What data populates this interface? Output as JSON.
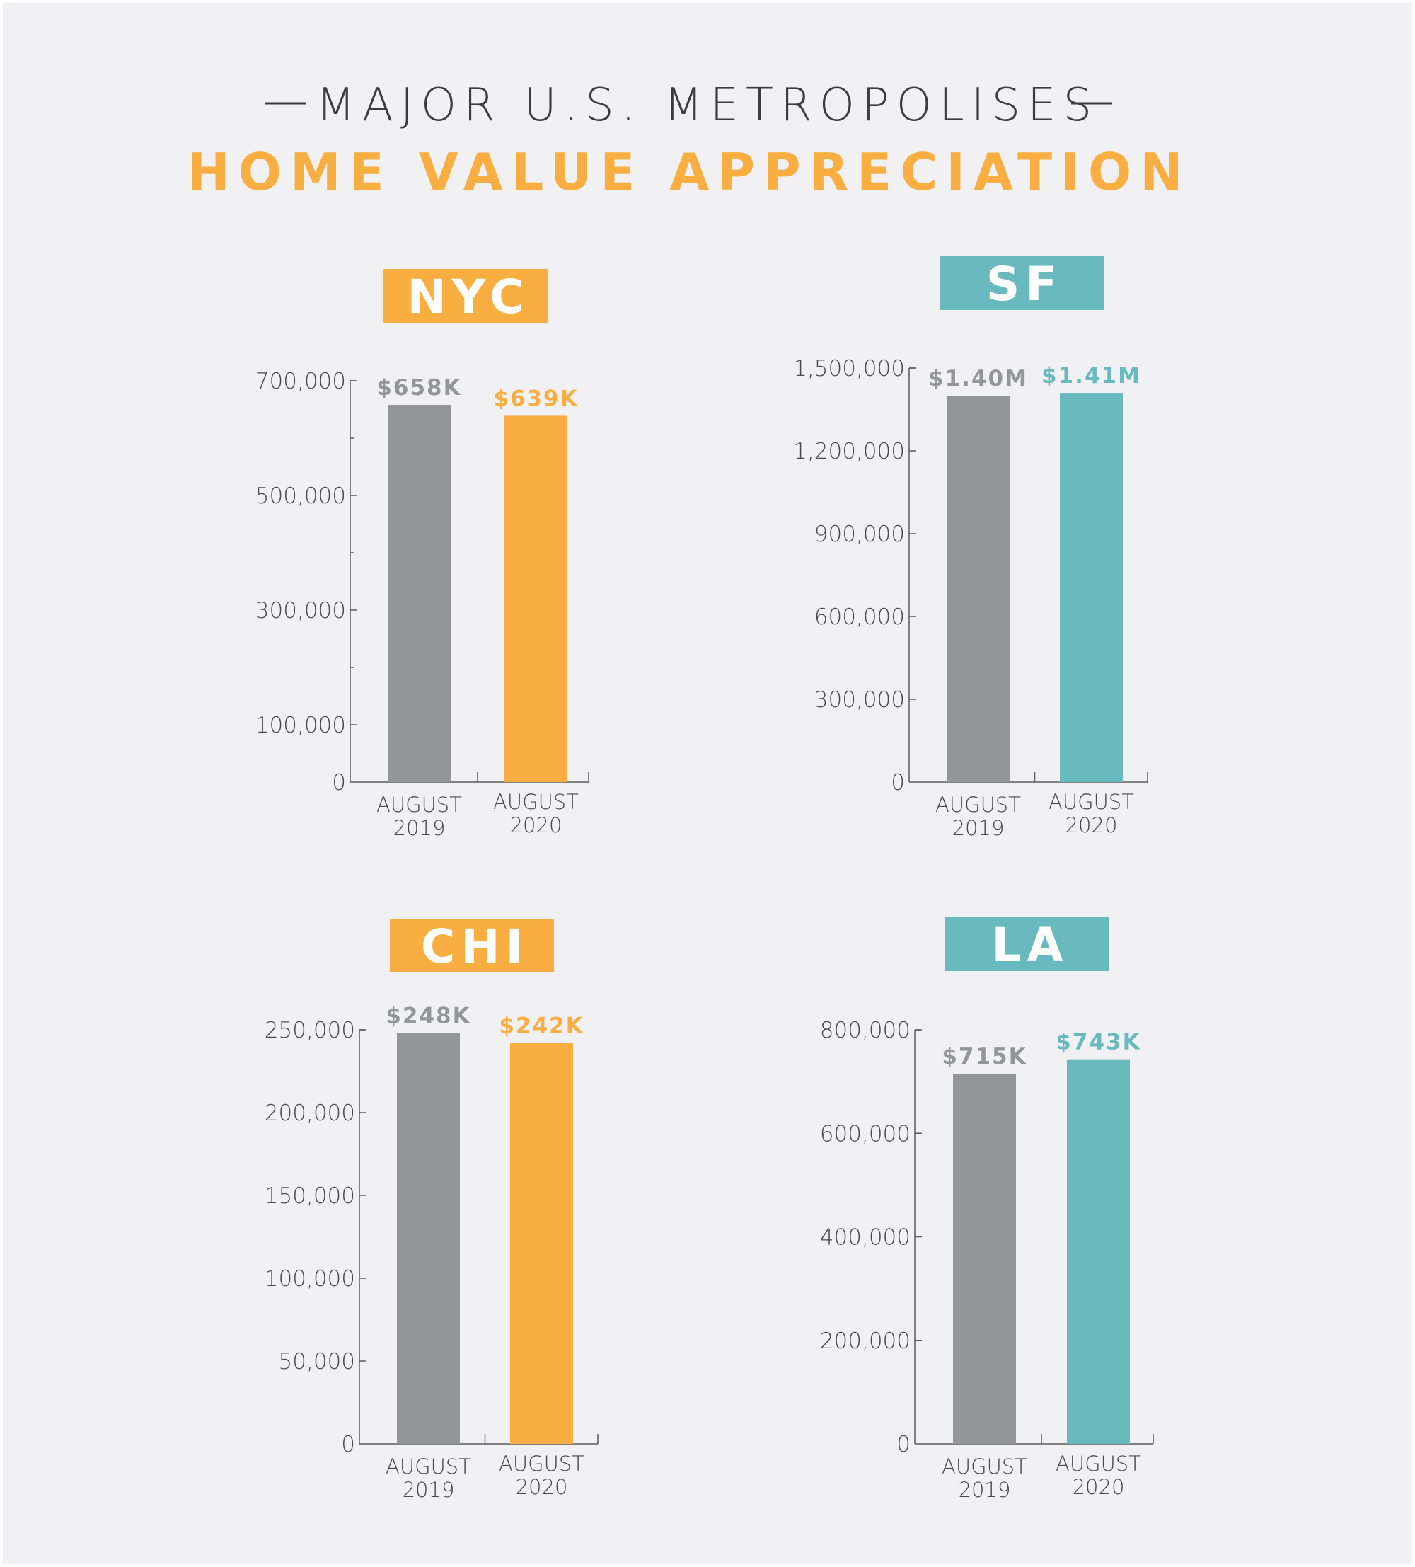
{
  "header": {
    "title_top": "MAJOR U.S. METROPOLISES",
    "title_main": "HOME VALUE APPRECIATION"
  },
  "colors": {
    "background": "#f1f1f3",
    "gray": "#949598",
    "orange": "#f9ae41",
    "teal": "#69babf",
    "text": "#3d3d40"
  },
  "chart_data": [
    {
      "type": "bar",
      "title": "NYC",
      "accent": "orange",
      "categories": [
        "AUGUST 2019",
        "AUGUST 2020"
      ],
      "category_lines": [
        [
          "AUGUST",
          "2019"
        ],
        [
          "AUGUST",
          "2020"
        ]
      ],
      "values": [
        658000,
        639000
      ],
      "data_labels": [
        "$658K",
        "$639K"
      ],
      "ylim": [
        0,
        700000
      ],
      "yticks": [
        0,
        100000,
        300000,
        500000,
        700000
      ],
      "ytick_labels": [
        "0",
        "100,000",
        "300,000",
        "500,000",
        "700,000"
      ],
      "minor_ticks": [
        200000,
        400000,
        600000
      ],
      "grid": false
    },
    {
      "type": "bar",
      "title": "SF",
      "accent": "teal",
      "categories": [
        "AUGUST 2019",
        "AUGUST 2020"
      ],
      "category_lines": [
        [
          "AUGUST",
          "2019"
        ],
        [
          "AUGUST",
          "2020"
        ]
      ],
      "values": [
        1400000,
        1410000
      ],
      "data_labels": [
        "$1.40M",
        "$1.41M"
      ],
      "ylim": [
        0,
        1500000
      ],
      "yticks": [
        0,
        300000,
        600000,
        900000,
        1200000,
        1500000
      ],
      "ytick_labels": [
        "0",
        "300,000",
        "600,000",
        "900,000",
        "1,200,000",
        "1,500,000"
      ],
      "minor_ticks": [],
      "grid": false
    },
    {
      "type": "bar",
      "title": "CHI",
      "accent": "orange",
      "categories": [
        "AUGUST 2019",
        "AUGUST 2020"
      ],
      "category_lines": [
        [
          "AUGUST",
          "2019"
        ],
        [
          "AUGUST",
          "2020"
        ]
      ],
      "values": [
        248000,
        242000
      ],
      "data_labels": [
        "$248K",
        "$242K"
      ],
      "ylim": [
        0,
        250000
      ],
      "yticks": [
        0,
        50000,
        100000,
        150000,
        200000,
        250000
      ],
      "ytick_labels": [
        "0",
        "50,000",
        "100,000",
        "150,000",
        "200,000",
        "250,000"
      ],
      "minor_ticks": [],
      "grid": false
    },
    {
      "type": "bar",
      "title": "LA",
      "accent": "teal",
      "categories": [
        "AUGUST 2019",
        "AUGUST 2020"
      ],
      "category_lines": [
        [
          "AUGUST",
          "2019"
        ],
        [
          "AUGUST",
          "2020"
        ]
      ],
      "values": [
        715000,
        743000
      ],
      "data_labels": [
        "$715K",
        "$743K"
      ],
      "ylim": [
        0,
        800000
      ],
      "yticks": [
        0,
        200000,
        400000,
        600000,
        800000
      ],
      "ytick_labels": [
        "0",
        "200,000",
        "400,000",
        "600,000",
        "800,000"
      ],
      "minor_ticks": [],
      "grid": false
    }
  ]
}
